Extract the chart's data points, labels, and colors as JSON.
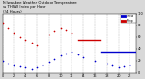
{
  "title": "Milwaukee Weather Outdoor Temperature vs THSW Index per Hour (24 Hours)",
  "title_fontsize": 4.0,
  "background_color": "#d8d8d8",
  "plot_bg_color": "#ffffff",
  "grid_color": "#b0b0b0",
  "temp_color": "#cc0000",
  "thsw_color": "#0000cc",
  "xlim": [
    0,
    23
  ],
  "ylim": [
    0,
    100
  ],
  "yticks": [
    0,
    20,
    40,
    60,
    80,
    100
  ],
  "xticks": [
    0,
    2,
    4,
    6,
    8,
    10,
    12,
    14,
    16,
    18,
    20,
    22
  ],
  "temp_scatter_hours": [
    0,
    1,
    2,
    3,
    4,
    5,
    6,
    8,
    9,
    10,
    11,
    12
  ],
  "temp_scatter_vals": [
    85,
    75,
    68,
    60,
    55,
    50,
    45,
    65,
    70,
    75,
    72,
    68
  ],
  "temp_line_hours": [
    13,
    14,
    15,
    16,
    17
  ],
  "temp_line_vals": [
    55,
    55,
    55,
    55,
    55
  ],
  "thsw_scatter_hours": [
    0,
    1,
    2,
    3,
    4,
    5,
    6,
    7,
    8,
    9,
    10,
    11,
    12,
    13,
    14,
    16,
    18,
    19,
    20,
    21,
    22
  ],
  "thsw_scatter_vals": [
    20,
    15,
    12,
    10,
    8,
    5,
    8,
    12,
    18,
    22,
    28,
    32,
    35,
    30,
    25,
    20,
    15,
    12,
    8,
    10,
    12
  ],
  "thsw_line_hours": [
    17,
    18,
    19,
    20,
    21,
    22,
    23
  ],
  "thsw_line_vals": [
    35,
    35,
    35,
    35,
    35,
    35,
    35
  ],
  "legend_thsw_label": "THSW",
  "legend_temp_label": "Temp"
}
